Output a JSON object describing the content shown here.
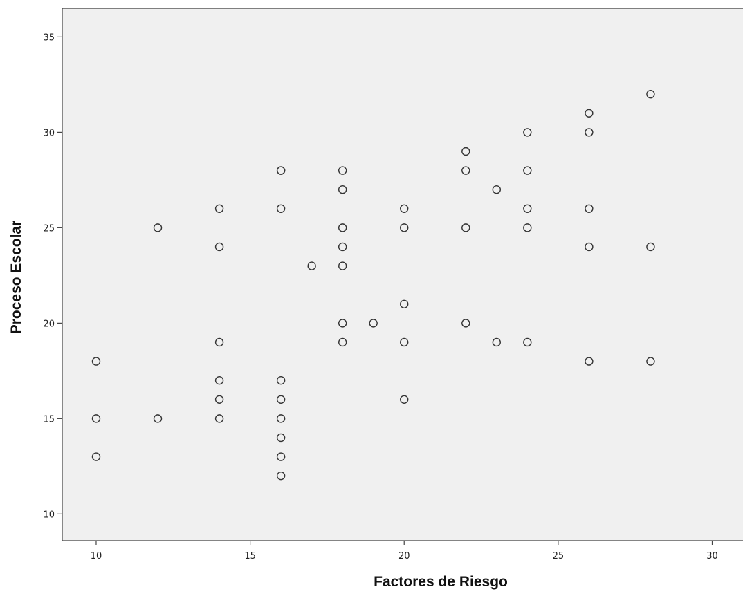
{
  "chart_data": {
    "type": "scatter",
    "title": "",
    "xlabel": "Factores de Riesgo",
    "ylabel": "Proceso Escolar",
    "xlim": [
      8.9,
      31.0
    ],
    "ylim": [
      8.6,
      36.5
    ],
    "xticks": [
      10,
      15,
      20,
      25,
      30
    ],
    "yticks": [
      10,
      15,
      20,
      25,
      30,
      35
    ],
    "grid": false,
    "colors": {
      "plot_background": "#f0f0f0",
      "marker_stroke": "#333333",
      "marker_fill": "none",
      "axis": "#444444",
      "frame": "#7f7f7f"
    },
    "series": [
      {
        "x": [
          10,
          10,
          10,
          12,
          12,
          14,
          14,
          14,
          14,
          14,
          14,
          16,
          16,
          16,
          16,
          16,
          16,
          16,
          16,
          16,
          17,
          18,
          18,
          18,
          18,
          18,
          18,
          18,
          19,
          20,
          20,
          20,
          20,
          20,
          22,
          22,
          22,
          22,
          23,
          23,
          24,
          24,
          24,
          24,
          24,
          26,
          26,
          26,
          26,
          26,
          28,
          28,
          28
        ],
        "y": [
          18,
          15,
          13,
          25,
          15,
          26,
          24,
          19,
          17,
          16,
          15,
          28,
          26,
          17,
          16,
          15,
          14,
          13,
          12,
          28,
          23,
          28,
          27,
          25,
          24,
          23,
          20,
          19,
          20,
          26,
          25,
          21,
          19,
          16,
          29,
          28,
          25,
          20,
          27,
          19,
          30,
          28,
          26,
          25,
          19,
          31,
          30,
          26,
          24,
          18,
          32,
          24,
          18
        ]
      }
    ]
  }
}
